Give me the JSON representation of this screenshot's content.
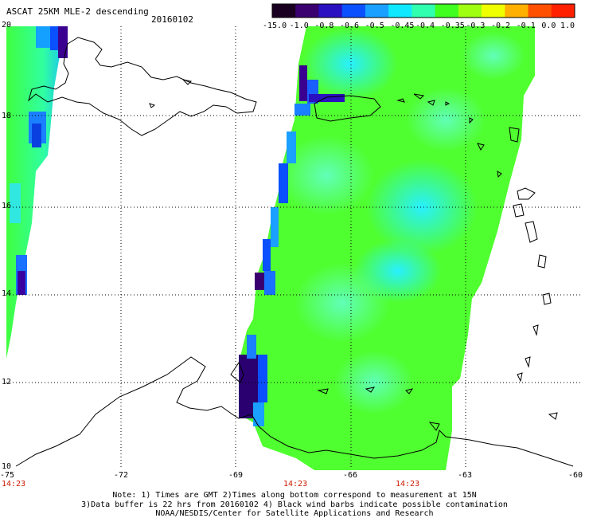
{
  "header": {
    "title": "ASCAT 25KM MLE-2 descending",
    "date": "20160102"
  },
  "colorbar": {
    "labels": [
      "-15.0",
      "-1.0",
      "-0.8",
      "-0.6",
      "-0.5",
      "-0.45",
      "-0.4",
      "-0.35",
      "-0.3",
      "-0.2",
      "-0.1",
      "0.0",
      "1.0"
    ],
    "colors": [
      "#1a0020",
      "#3a0070",
      "#2a10c0",
      "#0a50ff",
      "#1aa0ff",
      "#10e8ff",
      "#30ffb0",
      "#40ff20",
      "#a0ff10",
      "#f0ff00",
      "#ffb000",
      "#ff5000",
      "#ff2000"
    ]
  },
  "axes": {
    "x_labels": [
      "-75",
      "-72",
      "-69",
      "-66",
      "-63",
      "-60"
    ],
    "y_labels": [
      "20",
      "18",
      "16",
      "14",
      "12",
      "10"
    ]
  },
  "pass_times": [
    "14:23",
    "14:23",
    "14:23"
  ],
  "notes": [
    "Note: 1) Times are GMT 2)Times along bottom correspond to measurement at 15N",
    "3)Data buffer is 22 hrs from 20160102 4) Black wind barbs indicate possible contamination",
    "NOAA/NESDIS/Center for Satellite Applications and Research"
  ]
}
